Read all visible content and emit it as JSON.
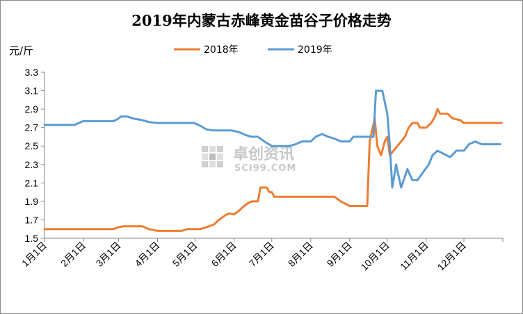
{
  "chart_data": {
    "type": "line",
    "title": "2019年内蒙古赤峰黄金苗谷子价格走势",
    "ylabel": "元/斤",
    "xlabel": "",
    "ylim": [
      1.5,
      3.3
    ],
    "yticks": [
      1.5,
      1.7,
      1.9,
      2.1,
      2.3,
      2.5,
      2.7,
      2.9,
      3.1,
      3.3
    ],
    "ytick_labels": [
      "1.5",
      "1.7",
      "1.9",
      "2.1",
      "2.3",
      "2.5",
      "2.7",
      "2.9",
      "3.1",
      "3.3"
    ],
    "x_range": [
      "1月1日",
      "12月31日"
    ],
    "x_ticks": [
      "1月1日",
      "2月1日",
      "3月1日",
      "4月1日",
      "5月1日",
      "6月1日",
      "7月1日",
      "8月1日",
      "9月1日",
      "10月1日",
      "11月1日",
      "12月1日"
    ],
    "grid": false,
    "legend": "top-center",
    "series": [
      {
        "name": "2018年",
        "color": "#ED7D31",
        "points": [
          [
            "1月1日",
            1.6
          ],
          [
            "2月25日",
            1.6
          ],
          [
            "3月1日",
            1.62
          ],
          [
            "3月5日",
            1.63
          ],
          [
            "3月20日",
            1.63
          ],
          [
            "3月25日",
            1.6
          ],
          [
            "4月1日",
            1.58
          ],
          [
            "4月20日",
            1.58
          ],
          [
            "4月25日",
            1.6
          ],
          [
            "5月5日",
            1.6
          ],
          [
            "5月10日",
            1.62
          ],
          [
            "5月16日",
            1.65
          ],
          [
            "5月20日",
            1.7
          ],
          [
            "5月25日",
            1.75
          ],
          [
            "5月28日",
            1.77
          ],
          [
            "6月1日",
            1.76
          ],
          [
            "6月5日",
            1.8
          ],
          [
            "6月8日",
            1.84
          ],
          [
            "6月12日",
            1.88
          ],
          [
            "6月15日",
            1.9
          ],
          [
            "6月20日",
            1.9
          ],
          [
            "6月22日",
            2.05
          ],
          [
            "6月27日",
            2.05
          ],
          [
            "6月29日",
            2.0
          ],
          [
            "7月1日",
            2.0
          ],
          [
            "7月3日",
            1.95
          ],
          [
            "8月20日",
            1.95
          ],
          [
            "8月25日",
            1.9
          ],
          [
            "9月1日",
            1.85
          ],
          [
            "9月15日",
            1.85
          ],
          [
            "9月17日",
            2.55
          ],
          [
            "9月21日",
            2.8
          ],
          [
            "9月23日",
            2.5
          ],
          [
            "9月26日",
            2.4
          ],
          [
            "9月29日",
            2.55
          ],
          [
            "10月1日",
            2.6
          ],
          [
            "10月3日",
            2.4
          ],
          [
            "10月6日",
            2.45
          ],
          [
            "10月9日",
            2.5
          ],
          [
            "10月12日",
            2.55
          ],
          [
            "10月15日",
            2.6
          ],
          [
            "10月18日",
            2.7
          ],
          [
            "10月21日",
            2.75
          ],
          [
            "10月25日",
            2.75
          ],
          [
            "10月27日",
            2.7
          ],
          [
            "11月1日",
            2.7
          ],
          [
            "11月5日",
            2.75
          ],
          [
            "11月8日",
            2.82
          ],
          [
            "11月10日",
            2.9
          ],
          [
            "11月12日",
            2.85
          ],
          [
            "11月18日",
            2.85
          ],
          [
            "11月22日",
            2.8
          ],
          [
            "11月28日",
            2.78
          ],
          [
            "12月1日",
            2.75
          ],
          [
            "12月31日",
            2.75
          ]
        ]
      },
      {
        "name": "2019年",
        "color": "#5B9BD5",
        "points": [
          [
            "1月1日",
            2.73
          ],
          [
            "1月25日",
            2.73
          ],
          [
            "1月30日",
            2.76
          ],
          [
            "2月1日",
            2.77
          ],
          [
            "2月25日",
            2.77
          ],
          [
            "2月28日",
            2.79
          ],
          [
            "3月3日",
            2.82
          ],
          [
            "3月8日",
            2.82
          ],
          [
            "3月12日",
            2.8
          ],
          [
            "3月20日",
            2.78
          ],
          [
            "3月25日",
            2.76
          ],
          [
            "4月1日",
            2.75
          ],
          [
            "4月30日",
            2.75
          ],
          [
            "5月5日",
            2.72
          ],
          [
            "5月10日",
            2.68
          ],
          [
            "5月15日",
            2.67
          ],
          [
            "5月30日",
            2.67
          ],
          [
            "6月5日",
            2.65
          ],
          [
            "6月10日",
            2.62
          ],
          [
            "6月15日",
            2.6
          ],
          [
            "6月20日",
            2.6
          ],
          [
            "6月25日",
            2.55
          ],
          [
            "7月1日",
            2.5
          ],
          [
            "7月15日",
            2.5
          ],
          [
            "7月20日",
            2.52
          ],
          [
            "7月25日",
            2.55
          ],
          [
            "8月1日",
            2.55
          ],
          [
            "8月5日",
            2.6
          ],
          [
            "8月10日",
            2.63
          ],
          [
            "8月15Day",
            2.6
          ],
          [
            "8月20日",
            2.58
          ],
          [
            "8月25日",
            2.55
          ],
          [
            "9月1日",
            2.55
          ],
          [
            "9月4日",
            2.6
          ],
          [
            "9月10日",
            2.6
          ],
          [
            "9月20日",
            2.6
          ],
          [
            "9月22日",
            3.1
          ],
          [
            "9月27日",
            3.1
          ],
          [
            "10月1日",
            2.85
          ],
          [
            "10月3日",
            2.5
          ],
          [
            "10月5日",
            2.05
          ],
          [
            "10月8日",
            2.3
          ],
          [
            "10月12日",
            2.05
          ],
          [
            "10月17日",
            2.25
          ],
          [
            "10月21日",
            2.13
          ],
          [
            "10月25日",
            2.13
          ],
          [
            "11月3日",
            2.3
          ],
          [
            "11月6日",
            2.4
          ],
          [
            "11月10日",
            2.45
          ],
          [
            "11月20日",
            2.38
          ],
          [
            "11月25日",
            2.45
          ],
          [
            "12月1日",
            2.45
          ],
          [
            "12月5日",
            2.52
          ],
          [
            "12月10日",
            2.55
          ],
          [
            "12月15日",
            2.52
          ],
          [
            "12月30日",
            2.52
          ]
        ]
      }
    ]
  },
  "watermark": {
    "cn_text": "卓创资讯",
    "en_text": "SCI99.COM"
  }
}
